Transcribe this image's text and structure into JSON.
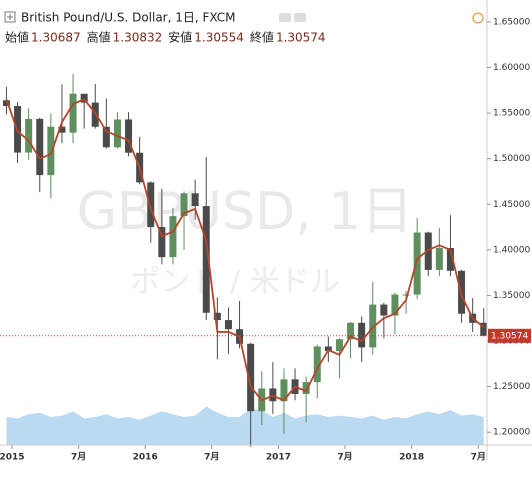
{
  "chart_data": {
    "type": "candlestick",
    "title": "British Pound/U.S. Dollar, 1日, FXCM",
    "ohlc_labels": [
      "始値",
      "高値",
      "安値",
      "終値"
    ],
    "ohlc_values": [
      1.30687,
      1.30832,
      1.30554,
      1.30574
    ],
    "watermark": "GBPUSD, 1日",
    "watermark_sub": "ポンド / 米ドル",
    "last_price": {
      "value": 1.30574,
      "label": "1.30574",
      "color": "#c0392b"
    },
    "x": [
      "2014-12",
      "2015-01",
      "2015-02",
      "2015-03",
      "2015-04",
      "2015-05",
      "2015-06",
      "2015-07",
      "2015-08",
      "2015-09",
      "2015-10",
      "2015-11",
      "2015-12",
      "2016-01",
      "2016-02",
      "2016-03",
      "2016-04",
      "2016-05",
      "2016-06",
      "2016-07",
      "2016-08",
      "2016-09",
      "2016-10",
      "2016-11",
      "2016-12",
      "2017-01",
      "2017-02",
      "2017-03",
      "2017-04",
      "2017-05",
      "2017-06",
      "2017-07",
      "2017-08",
      "2017-09",
      "2017-10",
      "2017-11",
      "2017-12",
      "2018-01",
      "2018-02",
      "2018-03",
      "2018-04",
      "2018-05",
      "2018-06",
      "2018-07"
    ],
    "open": [
      1.564,
      1.5577,
      1.5067,
      1.5436,
      1.482,
      1.535,
      1.5285,
      1.5712,
      1.5615,
      1.535,
      1.5125,
      1.543,
      1.5065,
      1.474,
      1.425,
      1.392,
      1.437,
      1.462,
      1.448,
      1.331,
      1.323,
      1.313,
      1.297,
      1.223,
      1.248,
      1.234,
      1.258,
      1.242,
      1.255,
      1.294,
      1.289,
      1.302,
      1.32,
      1.293,
      1.34,
      1.328,
      1.351,
      1.351,
      1.419,
      1.378,
      1.402,
      1.377,
      1.33,
      1.32
    ],
    "high": [
      1.5786,
      1.562,
      1.5552,
      1.5448,
      1.5498,
      1.5815,
      1.593,
      1.569,
      1.582,
      1.566,
      1.551,
      1.551,
      1.524,
      1.475,
      1.467,
      1.446,
      1.464,
      1.477,
      1.502,
      1.348,
      1.337,
      1.344,
      1.298,
      1.267,
      1.277,
      1.27,
      1.27,
      1.261,
      1.296,
      1.305,
      1.303,
      1.321,
      1.327,
      1.365,
      1.342,
      1.353,
      1.355,
      1.435,
      1.42,
      1.424,
      1.438,
      1.378,
      1.347,
      1.336
    ],
    "low": [
      1.5486,
      1.4952,
      1.4987,
      1.4633,
      1.4565,
      1.517,
      1.517,
      1.533,
      1.533,
      1.511,
      1.511,
      1.5025,
      1.472,
      1.408,
      1.384,
      1.384,
      1.4,
      1.433,
      1.323,
      1.28,
      1.286,
      1.292,
      1.184,
      1.208,
      1.22,
      1.198,
      1.235,
      1.211,
      1.237,
      1.277,
      1.259,
      1.281,
      1.277,
      1.285,
      1.303,
      1.307,
      1.33,
      1.346,
      1.371,
      1.371,
      1.371,
      1.32,
      1.31,
      1.305
    ],
    "close": [
      1.5577,
      1.5067,
      1.5436,
      1.482,
      1.535,
      1.5285,
      1.5712,
      1.5615,
      1.535,
      1.5125,
      1.543,
      1.5065,
      1.474,
      1.425,
      1.392,
      1.437,
      1.462,
      1.448,
      1.331,
      1.323,
      1.313,
      1.297,
      1.223,
      1.248,
      1.234,
      1.258,
      1.242,
      1.255,
      1.294,
      1.289,
      1.302,
      1.32,
      1.293,
      1.34,
      1.328,
      1.351,
      1.351,
      1.419,
      1.378,
      1.402,
      1.377,
      1.33,
      1.32,
      1.30574
    ],
    "up_color": "#5f8f5f",
    "down_color": "#4a4a4a",
    "ma": {
      "color": "#b5452b",
      "values": [
        1.565,
        1.53,
        1.52,
        1.5,
        1.505,
        1.54,
        1.56,
        1.565,
        1.55,
        1.53,
        1.525,
        1.52,
        1.49,
        1.445,
        1.415,
        1.42,
        1.44,
        1.445,
        1.41,
        1.31,
        1.31,
        1.305,
        1.25,
        1.235,
        1.24,
        1.235,
        1.25,
        1.245,
        1.27,
        1.29,
        1.285,
        1.305,
        1.3,
        1.315,
        1.325,
        1.33,
        1.345,
        1.39,
        1.4,
        1.405,
        1.4,
        1.35,
        1.325,
        1.315
      ]
    },
    "volume": {
      "color": "#a9d1ef",
      "values": [
        40,
        38,
        44,
        46,
        40,
        42,
        48,
        38,
        40,
        44,
        38,
        40,
        36,
        42,
        48,
        44,
        40,
        42,
        55,
        46,
        40,
        40,
        52,
        50,
        40,
        46,
        38,
        42,
        44,
        40,
        42,
        40,
        38,
        42,
        36,
        40,
        38,
        44,
        48,
        44,
        50,
        42,
        44,
        40
      ]
    },
    "ylim": [
      1.186,
      1.674
    ],
    "yticks": [
      {
        "value": 1.2,
        "label": "1.20000"
      },
      {
        "value": 1.25,
        "label": "1.25000"
      },
      {
        "value": 1.3,
        "label": "1.30000"
      },
      {
        "value": 1.35,
        "label": "1.35000"
      },
      {
        "value": 1.4,
        "label": "1.40000"
      },
      {
        "value": 1.45,
        "label": "1.45000"
      },
      {
        "value": 1.5,
        "label": "1.50000"
      },
      {
        "value": 1.55,
        "label": "1.55000"
      },
      {
        "value": 1.6,
        "label": "1.60000"
      },
      {
        "value": 1.65,
        "label": "1.65000"
      }
    ],
    "xticks": [
      {
        "value": "2015-01",
        "label": "2015"
      },
      {
        "value": "2015-07",
        "label": "7月"
      },
      {
        "value": "2016-01",
        "label": "2016"
      },
      {
        "value": "2016-07",
        "label": "7月"
      },
      {
        "value": "2017-01",
        "label": "2017"
      },
      {
        "value": "2017-07",
        "label": "7月"
      },
      {
        "value": "2018-01",
        "label": "2018"
      },
      {
        "value": "2018-07",
        "label": "7月"
      }
    ]
  }
}
